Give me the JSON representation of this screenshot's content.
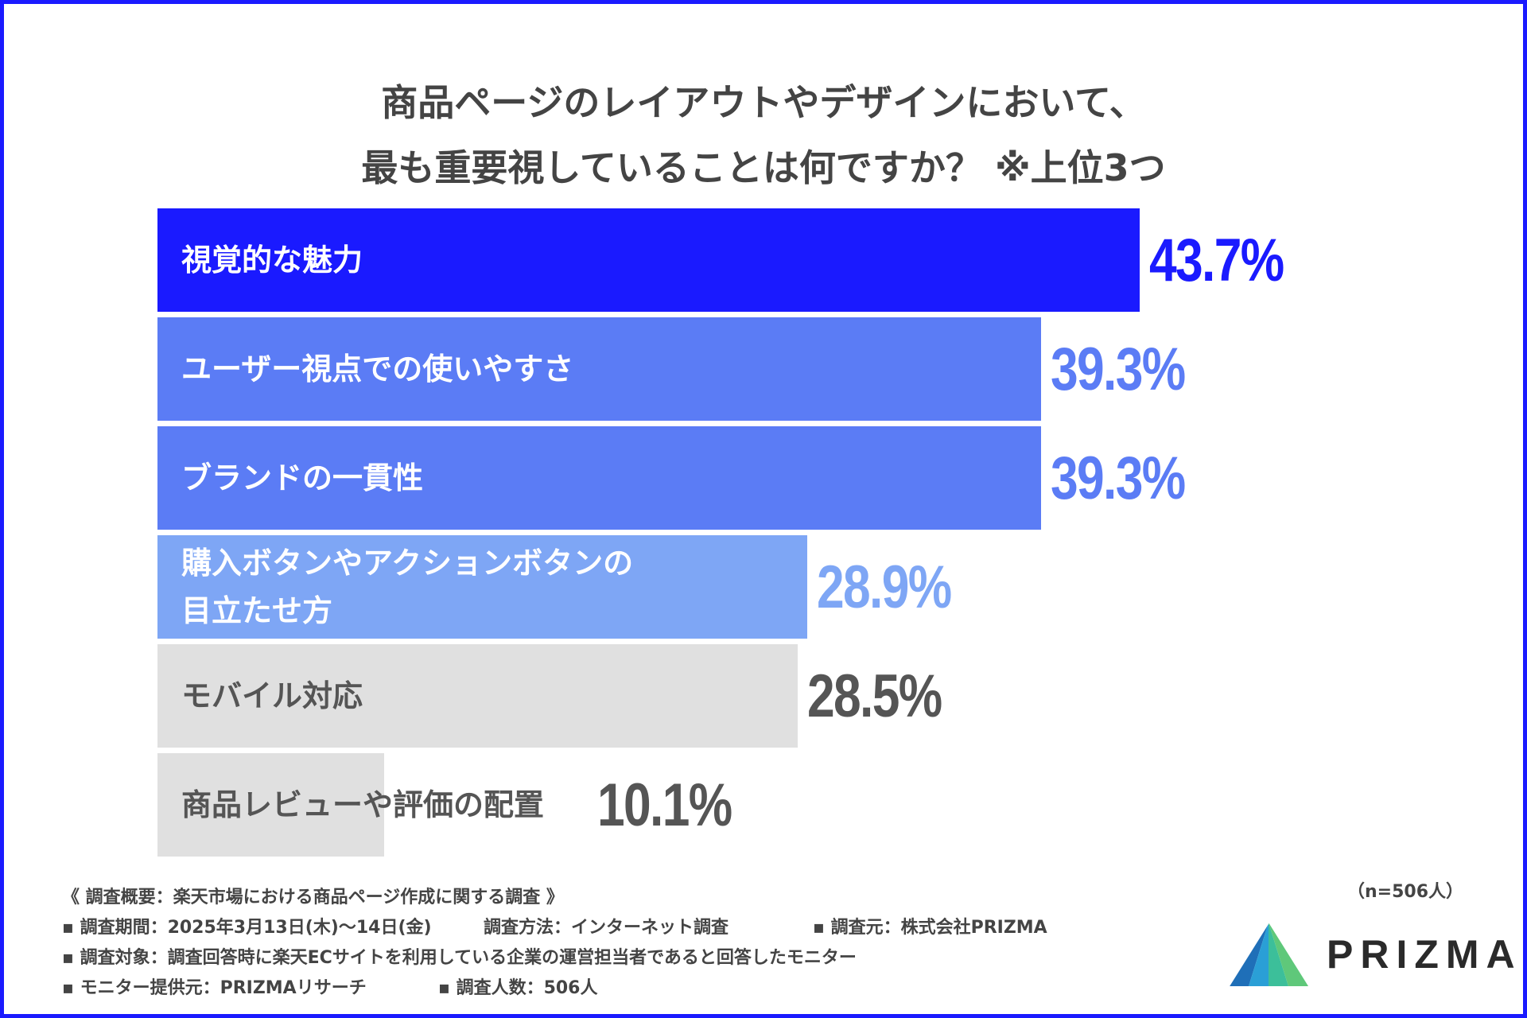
{
  "title": {
    "line1": "商品ページのレイアウトやデザインにおいて、",
    "line2": "最も重要視していることは何ですか？ ※上位3つ"
  },
  "chart_data": {
    "type": "bar",
    "orientation": "horizontal",
    "title": "商品ページのレイアウトやデザインにおいて、最も重要視していることは何ですか？ ※上位3つ",
    "categories": [
      "視覚的な魅力",
      "ユーザー視点での使いやすさ",
      "ブランドの一貫性",
      "購入ボタンやアクションボタンの目立たせ方",
      "モバイル対応",
      "商品レビューや評価の配置"
    ],
    "label_lines": [
      [
        "視覚的な魅力"
      ],
      [
        "ユーザー視点での使いやすさ"
      ],
      [
        "ブランドの一貫性"
      ],
      [
        "購入ボタンやアクションボタンの",
        "目立たせ方"
      ],
      [
        "モバイル対応"
      ],
      [
        "商品レビューや評価の配置"
      ]
    ],
    "values": [
      43.7,
      39.3,
      39.3,
      28.9,
      28.5,
      10.1
    ],
    "value_labels": [
      "43.7%",
      "39.3%",
      "39.3%",
      "28.9%",
      "28.5%",
      "10.1%"
    ],
    "bar_colors": [
      "#1a1aff",
      "#5b7cf5",
      "#5b7cf5",
      "#7ea6f5",
      "#e0e0e0",
      "#e0e0e0"
    ],
    "label_colors": [
      "#ffffff",
      "#ffffff",
      "#ffffff",
      "#ffffff",
      "#555555",
      "#555555"
    ],
    "value_colors": [
      "#1a1aff",
      "#5b7cf5",
      "#5b7cf5",
      "#7ea6f5",
      "#555555",
      "#555555"
    ],
    "xlim": [
      0,
      43.7
    ],
    "unit": "%"
  },
  "sample_size": "（n=506人）",
  "footnotes": {
    "heading": "《 調査概要：楽天市場における商品ページ作成に関する調査 》",
    "period": "▪ 調査期間：2025年3月13日(木)〜14日(金)",
    "method": "調査方法：インターネット調査",
    "source": "▪ 調査元：株式会社PRIZMA",
    "target": "▪ 調査対象：調査回答時に楽天ECサイトを利用している企業の運営担当者であると回答したモニター",
    "provider": "▪ モニター提供元：PRIZMAリサーチ",
    "count": "▪ 調査人数：506人"
  },
  "logo": {
    "text": "PRIZMA",
    "colors": [
      "#1f6fb8",
      "#2a9fd6",
      "#3cbf9a",
      "#5fc87a"
    ]
  }
}
